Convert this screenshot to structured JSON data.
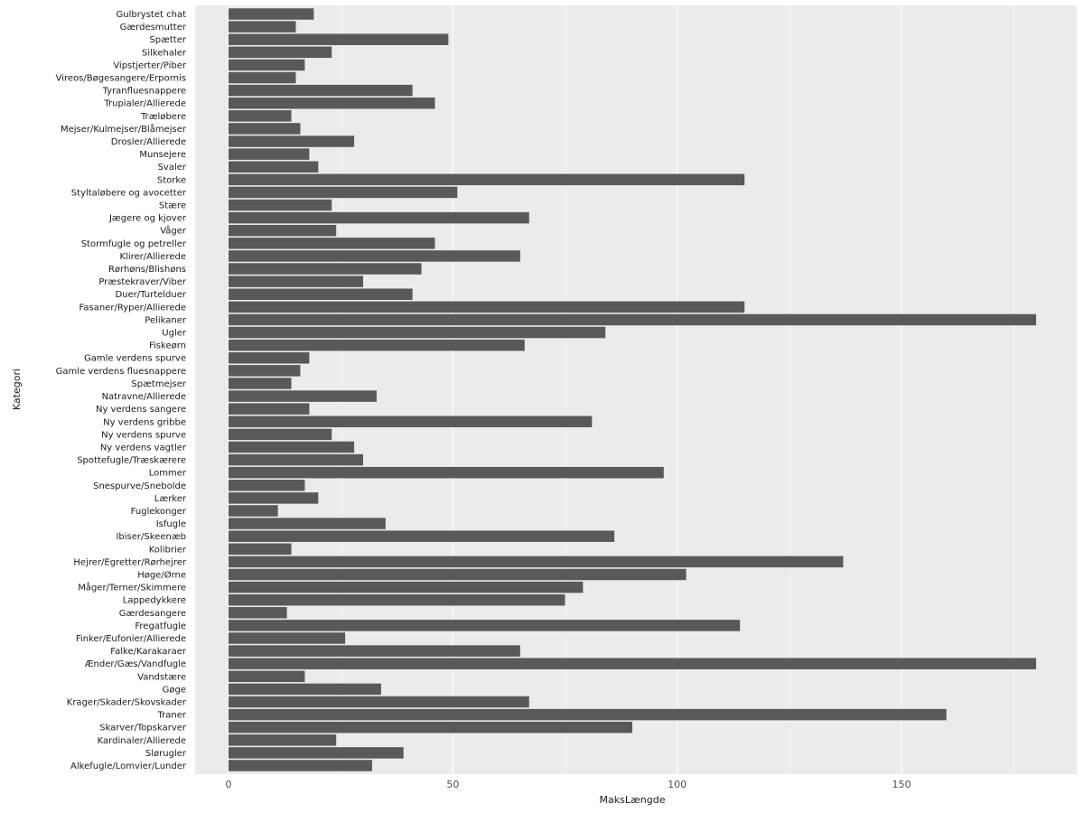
{
  "chart_data": {
    "type": "bar",
    "orientation": "horizontal",
    "xlabel": "MaksLængde",
    "ylabel": "Kategori",
    "xlim": [
      0,
      180
    ],
    "xticks": [
      0,
      50,
      100,
      150
    ],
    "grid": true,
    "colors": {
      "panel": "#ebebeb",
      "grid": "#ffffff",
      "bar": "#595959"
    },
    "categories": [
      "Gulbrystet chat",
      "Gærdesmutter",
      "Spætter",
      "Silkehaler",
      "Vipstjerter/Piber",
      "Vireos/Bøgesangere/Erpornis",
      "Tyranfluesnappere",
      "Trupialer/Allierede",
      "Træløbere",
      "Mejser/Kulmejser/Blåmejser",
      "Drosler/Allierede",
      "Munsejere",
      "Svaler",
      "Storke",
      "Styltaløbere og avocetter",
      "Stære",
      "Jægere og kjover",
      "Våger",
      "Stormfugle og petreller",
      "Klirer/Allierede",
      "Rørhøns/Blishøns",
      "Præstekraver/Viber",
      "Duer/Turtelduer",
      "Fasaner/Ryper/Allierede",
      "Pelikaner",
      "Ugler",
      "Fiskeørn",
      "Gamle verdens spurve",
      "Gamle verdens fluesnappere",
      "Spætmejser",
      "Natravne/Allierede",
      "Ny verdens sangere",
      "Ny verdens gribbe",
      "Ny verdens spurve",
      "Ny verdens vagtler",
      "Spottefugle/Træskærere",
      "Lommer",
      "Snespurve/Snebolde",
      "Lærker",
      "Fuglekonger",
      "Isfugle",
      "Ibiser/Skeenæb",
      "Kolibrier",
      "Hejrer/Egretter/Rørhejrer",
      "Høge/Ørne",
      "Måger/Terner/Skimmere",
      "Lappedykkere",
      "Gærdesangere",
      "Fregatfugle",
      "Finker/Eufonier/Allierede",
      "Falke/Karakaraer",
      "Ænder/Gæs/Vandfugle",
      "Vandstære",
      "Gøge",
      "Krager/Skader/Skovskader",
      "Traner",
      "Skarver/Topskarver",
      "Kardinaler/Allierede",
      "Slørugler",
      "Alkefugle/Lomvier/Lunder"
    ],
    "values": [
      19,
      15,
      49,
      23,
      17,
      15,
      41,
      46,
      14,
      16,
      28,
      18,
      20,
      115,
      51,
      23,
      67,
      24,
      46,
      65,
      43,
      30,
      41,
      115,
      180,
      84,
      66,
      18,
      16,
      14,
      33,
      18,
      81,
      23,
      28,
      30,
      97,
      17,
      20,
      11,
      35,
      86,
      14,
      137,
      102,
      79,
      75,
      13,
      114,
      26,
      65,
      180,
      17,
      34,
      67,
      160,
      90,
      24,
      39,
      32
    ]
  }
}
